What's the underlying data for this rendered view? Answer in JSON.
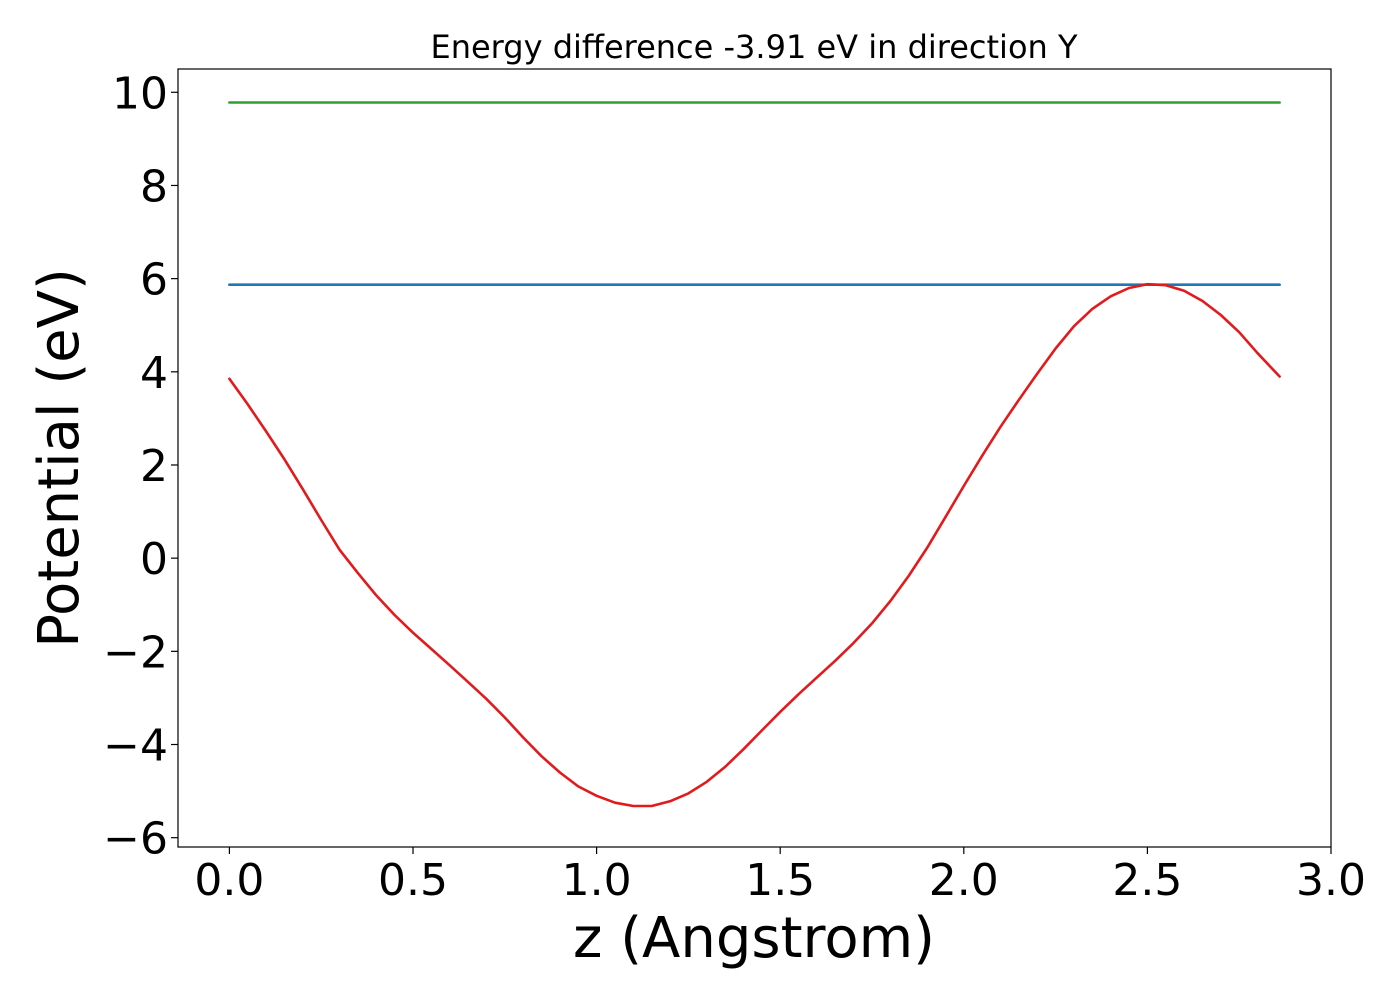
{
  "chart_data": {
    "type": "line",
    "title": "Energy difference -3.91 eV in direction Y",
    "xlabel": "z (Angstrom)",
    "ylabel": "Potential (eV)",
    "xlim": [
      -0.14,
      3.0
    ],
    "ylim": [
      -6.2,
      10.5
    ],
    "x_ticks": [
      0.0,
      0.5,
      1.0,
      1.5,
      2.0,
      2.5,
      3.0
    ],
    "x_tick_labels": [
      "0.0",
      "0.5",
      "1.0",
      "1.5",
      "2.0",
      "2.5",
      "3.0"
    ],
    "y_ticks": [
      -6,
      -4,
      -2,
      0,
      2,
      4,
      6,
      8,
      10
    ],
    "y_tick_labels": [
      "−6",
      "−4",
      "−2",
      "0",
      "2",
      "4",
      "6",
      "8",
      "10"
    ],
    "grid": false,
    "series": [
      {
        "color": "#2ca02c",
        "x": [
          0.0,
          2.86
        ],
        "y": [
          9.78,
          9.78
        ]
      },
      {
        "color": "#1f77b4",
        "x": [
          0.0,
          2.86
        ],
        "y": [
          5.87,
          5.87
        ]
      },
      {
        "color": "#e31a1c",
        "x": [
          0.0,
          0.05,
          0.1,
          0.15,
          0.2,
          0.25,
          0.3,
          0.35,
          0.4,
          0.45,
          0.5,
          0.55,
          0.6,
          0.65,
          0.7,
          0.75,
          0.8,
          0.85,
          0.9,
          0.95,
          1.0,
          1.05,
          1.1,
          1.15,
          1.2,
          1.25,
          1.3,
          1.35,
          1.4,
          1.45,
          1.5,
          1.55,
          1.6,
          1.65,
          1.7,
          1.75,
          1.8,
          1.85,
          1.9,
          1.95,
          2.0,
          2.05,
          2.1,
          2.15,
          2.2,
          2.25,
          2.3,
          2.35,
          2.4,
          2.45,
          2.5,
          2.55,
          2.6,
          2.65,
          2.7,
          2.75,
          2.8,
          2.86
        ],
        "y": [
          3.85,
          3.3,
          2.72,
          2.12,
          1.48,
          0.82,
          0.18,
          -0.32,
          -0.8,
          -1.22,
          -1.6,
          -1.95,
          -2.3,
          -2.66,
          -3.02,
          -3.42,
          -3.85,
          -4.25,
          -4.6,
          -4.9,
          -5.1,
          -5.25,
          -5.32,
          -5.32,
          -5.22,
          -5.05,
          -4.8,
          -4.48,
          -4.1,
          -3.7,
          -3.3,
          -2.92,
          -2.56,
          -2.2,
          -1.82,
          -1.4,
          -0.92,
          -0.38,
          0.22,
          0.88,
          1.55,
          2.2,
          2.82,
          3.4,
          3.96,
          4.5,
          4.98,
          5.35,
          5.62,
          5.8,
          5.88,
          5.86,
          5.74,
          5.52,
          5.22,
          4.85,
          4.4,
          3.9
        ]
      }
    ]
  }
}
